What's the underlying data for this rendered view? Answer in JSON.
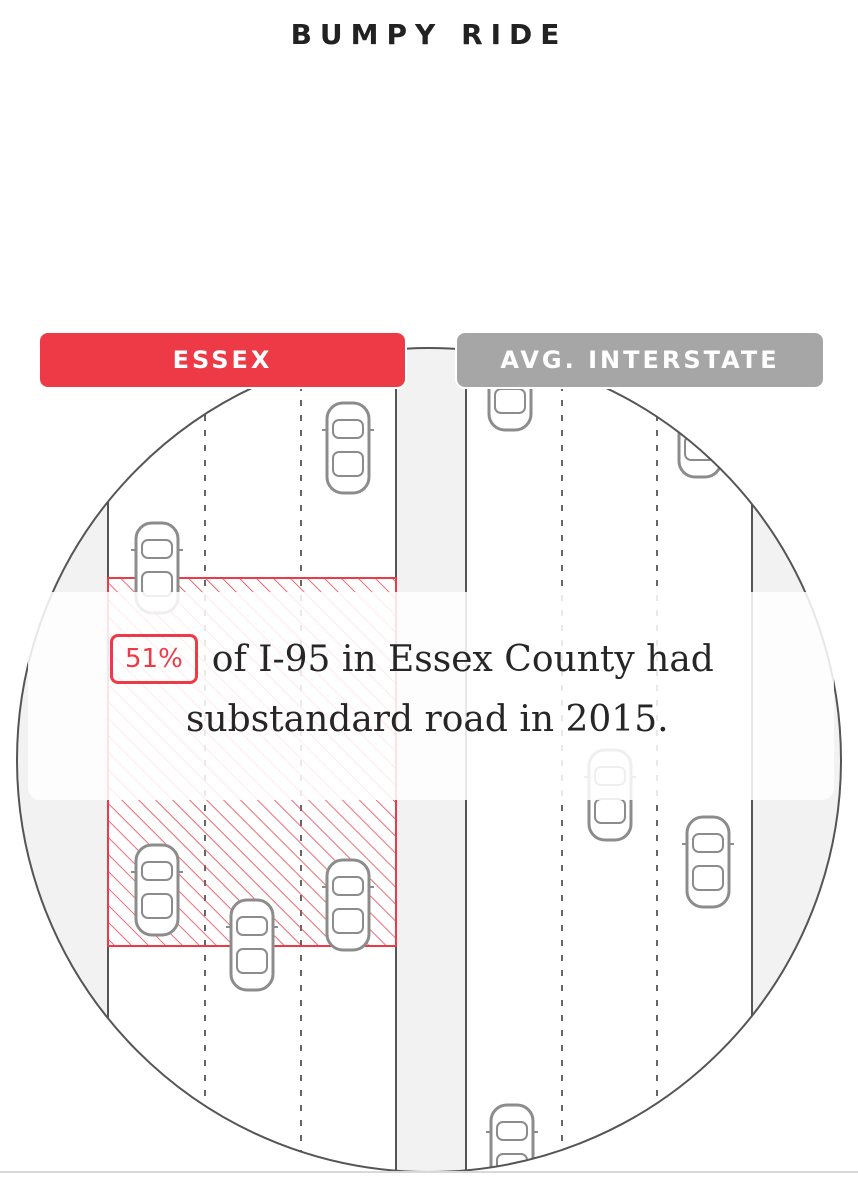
{
  "title": "BUMPY RIDE",
  "tabs": {
    "essex": "ESSEX",
    "avg": "AVG. INTERSTATE"
  },
  "statement": {
    "highlight": "51%",
    "line1": "of I-95 in Essex County had",
    "line2": "substandard road in 2015."
  },
  "colors": {
    "essex": "#ee3a46",
    "avg": "#a6a6a6",
    "road": "#f2f2f2",
    "lines": "#555555"
  },
  "icons": [
    "car-icon"
  ]
}
